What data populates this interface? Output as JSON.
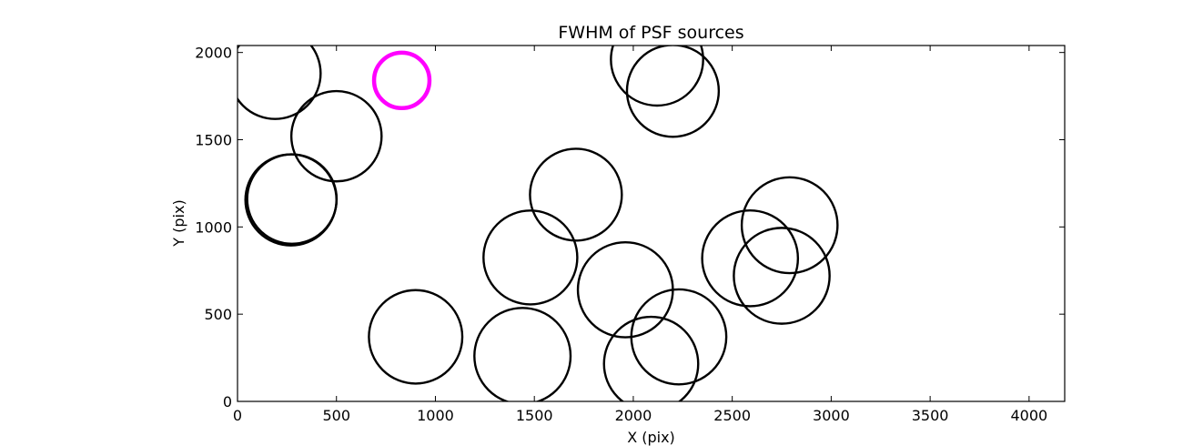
{
  "chart_data": {
    "type": "scatter",
    "title": "FWHM of PSF sources",
    "xlabel": "X (pix)",
    "ylabel": "Y (pix)",
    "xlim": [
      0,
      4180
    ],
    "ylim": [
      0,
      2040
    ],
    "xticks": [
      0,
      500,
      1000,
      1500,
      2000,
      2500,
      3000,
      3500,
      4000
    ],
    "yticks": [
      0,
      500,
      1000,
      1500,
      2000
    ],
    "grid": false,
    "legend": "none",
    "marker": "circle",
    "series": [
      {
        "color": "#000000",
        "points": [
          {
            "x": 190,
            "y": 1880,
            "r": 230
          },
          {
            "x": 500,
            "y": 1520,
            "r": 228
          },
          {
            "x": 270,
            "y": 1155,
            "r": 230
          },
          {
            "x": 275,
            "y": 1160,
            "r": 226
          },
          {
            "x": 900,
            "y": 370,
            "r": 236
          },
          {
            "x": 1440,
            "y": 260,
            "r": 243
          },
          {
            "x": 1480,
            "y": 825,
            "r": 237
          },
          {
            "x": 1710,
            "y": 1185,
            "r": 232
          },
          {
            "x": 1960,
            "y": 640,
            "r": 240
          },
          {
            "x": 2090,
            "y": 215,
            "r": 238
          },
          {
            "x": 2230,
            "y": 370,
            "r": 240
          },
          {
            "x": 2120,
            "y": 1960,
            "r": 233
          },
          {
            "x": 2200,
            "y": 1780,
            "r": 232
          },
          {
            "x": 2590,
            "y": 820,
            "r": 242
          },
          {
            "x": 2750,
            "y": 720,
            "r": 242
          },
          {
            "x": 2790,
            "y": 1010,
            "r": 242
          }
        ]
      },
      {
        "color": "#ff00ff",
        "points": [
          {
            "x": 830,
            "y": 1840,
            "r": 140
          }
        ]
      }
    ]
  }
}
